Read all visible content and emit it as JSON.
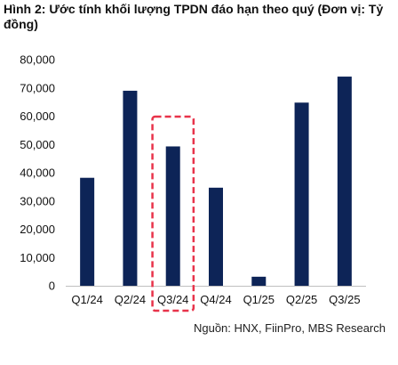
{
  "title": "Hình 2: Ước tính khối lượng TPDN đáo hạn theo quý (Đơn vị: Tỷ đồng)",
  "source": "Nguồn: HNX, FiinPro, MBS Research",
  "chart_data": {
    "type": "bar",
    "title": "Hình 2: Ước tính khối lượng TPDN đáo hạn theo quý (Đơn vị: Tỷ đồng)",
    "categories": [
      "Q1/24",
      "Q2/24",
      "Q3/24",
      "Q4/24",
      "Q1/25",
      "Q2/25",
      "Q3/25"
    ],
    "values": [
      38200,
      69000,
      49300,
      34700,
      3200,
      64800,
      74000
    ],
    "ylim": [
      0,
      80000
    ],
    "yticks": [
      "0",
      "10,000",
      "20,000",
      "30,000",
      "40,000",
      "50,000",
      "60,000",
      "70,000",
      "80,000"
    ],
    "xlabel": "",
    "ylabel": "",
    "grid": false,
    "highlighted_category": "Q3/24",
    "colors": {
      "bar": "#0d2457",
      "highlight_box": "#e8334a",
      "text": "#111111"
    }
  }
}
